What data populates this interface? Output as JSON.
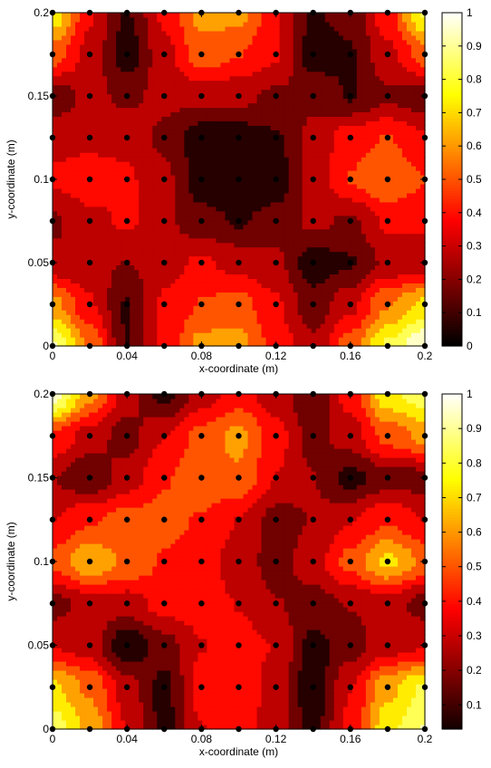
{
  "chart_data": [
    {
      "type": "heatmap",
      "subtype": "filled-contour",
      "xlabel": "x-coordinate (m)",
      "ylabel": "y-coordinate (m)",
      "xlim": [
        0,
        0.2
      ],
      "ylim": [
        0,
        0.2
      ],
      "x_ticks": [
        "0",
        "0.04",
        "0.08",
        "0.12",
        "0.16",
        "0.2"
      ],
      "y_ticks": [
        "0",
        "0.05",
        "0.1",
        "0.15",
        "0.2"
      ],
      "colorbar": {
        "colormap": "hot",
        "range": [
          0,
          1
        ],
        "ticks": [
          "0",
          "0.1",
          "0.2",
          "0.3",
          "0.4",
          "0.5",
          "0.6",
          "0.7",
          "0.8",
          "0.9",
          "1"
        ]
      },
      "grid_points": {
        "x": [
          0,
          0.02,
          0.04,
          0.06,
          0.08,
          0.1,
          0.12,
          0.14,
          0.16,
          0.18,
          0.2
        ],
        "y": [
          0,
          0.025,
          0.05,
          0.075,
          0.1,
          0.125,
          0.15,
          0.175,
          0.2
        ]
      },
      "field": [
        [
          0.9,
          0.55,
          0.1,
          0.35,
          0.6,
          0.6,
          0.4,
          0.25,
          0.5,
          0.8,
          1.0
        ],
        [
          0.6,
          0.35,
          0.1,
          0.35,
          0.45,
          0.5,
          0.35,
          0.15,
          0.3,
          0.55,
          0.7
        ],
        [
          0.25,
          0.25,
          0.22,
          0.3,
          0.35,
          0.3,
          0.25,
          0.05,
          0.1,
          0.25,
          0.25
        ],
        [
          0.2,
          0.3,
          0.35,
          0.25,
          0.15,
          0.1,
          0.15,
          0.25,
          0.2,
          0.35,
          0.35
        ],
        [
          0.35,
          0.4,
          0.35,
          0.25,
          0.05,
          0.02,
          0.05,
          0.25,
          0.45,
          0.55,
          0.45
        ],
        [
          0.3,
          0.3,
          0.3,
          0.2,
          0.05,
          0.05,
          0.1,
          0.25,
          0.4,
          0.45,
          0.35
        ],
        [
          0.15,
          0.25,
          0.2,
          0.25,
          0.25,
          0.25,
          0.2,
          0.2,
          0.1,
          0.2,
          0.15
        ],
        [
          0.5,
          0.3,
          0.05,
          0.3,
          0.5,
          0.45,
          0.35,
          0.05,
          0.1,
          0.3,
          0.5
        ],
        [
          0.75,
          0.35,
          0.1,
          0.35,
          0.6,
          0.6,
          0.35,
          0.1,
          0.15,
          0.4,
          0.8
        ]
      ]
    },
    {
      "type": "heatmap",
      "subtype": "filled-contour",
      "xlabel": "x-coordinate (m)",
      "ylabel": "y-coordinate (m)",
      "xlim": [
        0,
        0.2
      ],
      "ylim": [
        0,
        0.2
      ],
      "x_ticks": [
        "0",
        "0.04",
        "0.08",
        "0.12",
        "0.16",
        "0.2"
      ],
      "y_ticks": [
        "0",
        "0.05",
        "0.1",
        "0.15",
        "0.2"
      ],
      "colorbar": {
        "colormap": "hot",
        "range": [
          0.03,
          1
        ],
        "ticks": [
          "0.1",
          "0.2",
          "0.3",
          "0.4",
          "0.5",
          "0.6",
          "0.7",
          "0.8",
          "0.9",
          "1"
        ]
      },
      "grid_points": {
        "x": [
          0,
          0.02,
          0.04,
          0.06,
          0.08,
          0.1,
          0.12,
          0.14,
          0.16,
          0.18,
          0.2
        ],
        "y": [
          0,
          0.025,
          0.05,
          0.075,
          0.1,
          0.125,
          0.15,
          0.175,
          0.2
        ]
      },
      "field": [
        [
          0.85,
          0.65,
          0.35,
          0.1,
          0.35,
          0.4,
          0.3,
          0.1,
          0.4,
          0.75,
          0.9
        ],
        [
          0.7,
          0.55,
          0.3,
          0.1,
          0.4,
          0.45,
          0.3,
          0.05,
          0.35,
          0.65,
          0.8
        ],
        [
          0.35,
          0.3,
          0.05,
          0.2,
          0.35,
          0.4,
          0.35,
          0.1,
          0.2,
          0.3,
          0.35
        ],
        [
          0.2,
          0.3,
          0.3,
          0.4,
          0.4,
          0.35,
          0.25,
          0.2,
          0.25,
          0.3,
          0.2
        ],
        [
          0.5,
          0.65,
          0.55,
          0.45,
          0.4,
          0.3,
          0.2,
          0.3,
          0.5,
          0.7,
          0.55
        ],
        [
          0.35,
          0.45,
          0.5,
          0.5,
          0.45,
          0.35,
          0.2,
          0.25,
          0.35,
          0.45,
          0.35
        ],
        [
          0.25,
          0.15,
          0.3,
          0.45,
          0.55,
          0.55,
          0.35,
          0.25,
          0.1,
          0.2,
          0.2
        ],
        [
          0.45,
          0.3,
          0.2,
          0.35,
          0.5,
          0.6,
          0.4,
          0.2,
          0.3,
          0.5,
          0.6
        ],
        [
          0.95,
          0.6,
          0.3,
          0.1,
          0.3,
          0.4,
          0.3,
          0.15,
          0.4,
          0.75,
          0.85
        ]
      ]
    }
  ]
}
